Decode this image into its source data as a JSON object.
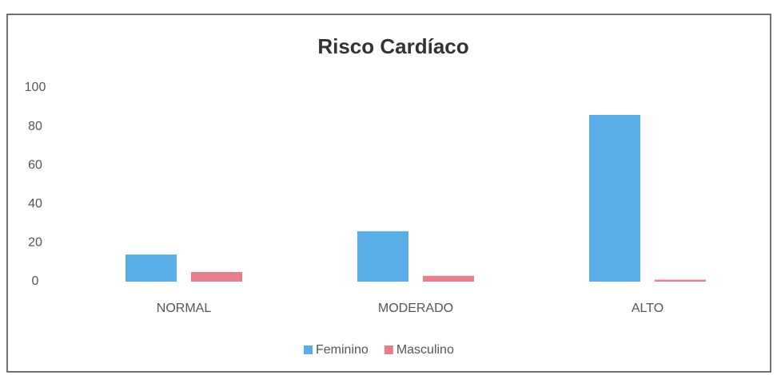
{
  "chart_data": {
    "type": "bar",
    "title": "Risco Cardíaco",
    "categories": [
      "NORMAL",
      "MODERADO",
      "ALTO"
    ],
    "series": [
      {
        "name": "Feminino",
        "color": "#5aaee8",
        "values": [
          14,
          26,
          86
        ]
      },
      {
        "name": "Masculino",
        "color": "#e57f8d",
        "values": [
          5,
          3,
          1
        ]
      }
    ],
    "ylim": [
      0,
      100
    ],
    "yticks": [
      0,
      20,
      40,
      60,
      80,
      100
    ],
    "grid": false,
    "legend": "bottom"
  }
}
